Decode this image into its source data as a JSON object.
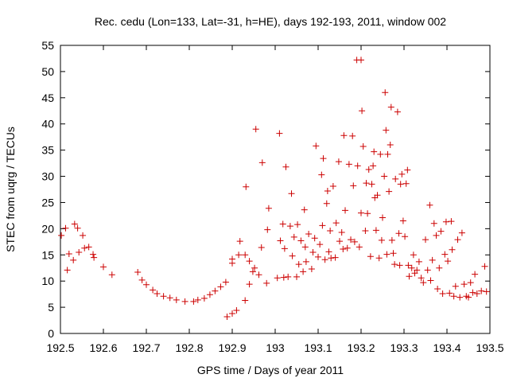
{
  "chart_data": {
    "type": "scatter",
    "title": "Rec. cedu (Lon=133, Lat=-31, h=HE), days 192-193, 2011, window 002",
    "xlabel": "GPS time / Days of year 2011",
    "ylabel": "STEC from uqrg / TECUs",
    "xlim": [
      192.5,
      193.5
    ],
    "ylim": [
      0,
      55
    ],
    "x_ticks": [
      "192.5",
      "192.6",
      "192.7",
      "192.8",
      "192.9",
      "193",
      "193.1",
      "193.2",
      "193.3",
      "193.4",
      "193.5"
    ],
    "y_ticks": [
      "0",
      "5",
      "10",
      "15",
      "20",
      "25",
      "30",
      "35",
      "40",
      "45",
      "50",
      "55"
    ],
    "grid": false,
    "marker": "+",
    "color": "#cc0000",
    "series": [
      {
        "points": [
          [
            192.502,
            18.7
          ],
          [
            192.512,
            20.1
          ],
          [
            192.516,
            12.1
          ],
          [
            192.52,
            15.2
          ],
          [
            192.53,
            14
          ],
          [
            192.533,
            20.9
          ],
          [
            192.54,
            20.1
          ],
          [
            192.543,
            15.5
          ],
          [
            192.552,
            18.7
          ],
          [
            192.556,
            16.3
          ],
          [
            192.566,
            16.5
          ],
          [
            192.576,
            15.1
          ],
          [
            192.578,
            14.5
          ],
          [
            192.6,
            12.7
          ],
          [
            192.62,
            11.2
          ],
          [
            192.68,
            11.7
          ],
          [
            192.69,
            10.2
          ],
          [
            192.7,
            9.3
          ],
          [
            192.715,
            8.3
          ],
          [
            192.725,
            7.6
          ],
          [
            192.74,
            7.1
          ],
          [
            192.755,
            6.8
          ],
          [
            192.77,
            6.4
          ],
          [
            192.79,
            6.1
          ],
          [
            192.81,
            6.1
          ],
          [
            192.82,
            6.4
          ],
          [
            192.835,
            6.7
          ],
          [
            192.848,
            7.4
          ],
          [
            192.86,
            8.1
          ],
          [
            192.873,
            8.9
          ],
          [
            192.885,
            9.8
          ],
          [
            192.888,
            3.2
          ],
          [
            192.9,
            3.8
          ],
          [
            192.9,
            13.4
          ],
          [
            192.9,
            14.2
          ],
          [
            192.91,
            4.4
          ],
          [
            192.915,
            15
          ],
          [
            192.918,
            17.6
          ],
          [
            192.93,
            6.3
          ],
          [
            192.93,
            15
          ],
          [
            192.932,
            28
          ],
          [
            192.94,
            9.4
          ],
          [
            192.94,
            13.8
          ],
          [
            192.948,
            11.8
          ],
          [
            192.952,
            12.5
          ],
          [
            192.955,
            39
          ],
          [
            192.962,
            11.2
          ],
          [
            192.968,
            16.4
          ],
          [
            192.97,
            32.6
          ],
          [
            192.98,
            9.6
          ],
          [
            192.982,
            19.8
          ],
          [
            192.985,
            23.9
          ],
          [
            193.005,
            10.6
          ],
          [
            193.01,
            38.2
          ],
          [
            193.012,
            17.7
          ],
          [
            193.018,
            20.9
          ],
          [
            193.02,
            10.7
          ],
          [
            193.022,
            16.2
          ],
          [
            193.025,
            31.8
          ],
          [
            193.03,
            10.8
          ],
          [
            193.035,
            20.5
          ],
          [
            193.038,
            26.7
          ],
          [
            193.04,
            14.8
          ],
          [
            193.044,
            18.4
          ],
          [
            193.05,
            10.8
          ],
          [
            193.052,
            20.8
          ],
          [
            193.055,
            13.2
          ],
          [
            193.06,
            17.7
          ],
          [
            193.065,
            11.8
          ],
          [
            193.068,
            23.6
          ],
          [
            193.07,
            16.5
          ],
          [
            193.072,
            13.7
          ],
          [
            193.078,
            19
          ],
          [
            193.085,
            12.3
          ],
          [
            193.088,
            15.5
          ],
          [
            193.092,
            18.2
          ],
          [
            193.095,
            35.8
          ],
          [
            193.1,
            14.6
          ],
          [
            193.104,
            17
          ],
          [
            193.108,
            30.3
          ],
          [
            193.11,
            20.6
          ],
          [
            193.112,
            33.4
          ],
          [
            193.116,
            14.1
          ],
          [
            193.12,
            24.8
          ],
          [
            193.122,
            27.2
          ],
          [
            193.125,
            15.6
          ],
          [
            193.128,
            19.6
          ],
          [
            193.13,
            14.4
          ],
          [
            193.135,
            28.1
          ],
          [
            193.14,
            14.5
          ],
          [
            193.142,
            21.1
          ],
          [
            193.148,
            32.8
          ],
          [
            193.15,
            17.6
          ],
          [
            193.155,
            19.3
          ],
          [
            193.158,
            16.1
          ],
          [
            193.16,
            37.8
          ],
          [
            193.163,
            23.5
          ],
          [
            193.168,
            16.3
          ],
          [
            193.172,
            32.3
          ],
          [
            193.176,
            17.9
          ],
          [
            193.18,
            37.7
          ],
          [
            193.182,
            28.2
          ],
          [
            193.185,
            17.5
          ],
          [
            193.19,
            52.2
          ],
          [
            193.192,
            32
          ],
          [
            193.196,
            16.5
          ],
          [
            193.2,
            23
          ],
          [
            193.2,
            52.2
          ],
          [
            193.202,
            42.5
          ],
          [
            193.205,
            35.7
          ],
          [
            193.21,
            19.6
          ],
          [
            193.212,
            28.7
          ],
          [
            193.215,
            22.9
          ],
          [
            193.218,
            31.3
          ],
          [
            193.222,
            14.7
          ],
          [
            193.225,
            28.5
          ],
          [
            193.228,
            32
          ],
          [
            193.23,
            34.7
          ],
          [
            193.232,
            25.9
          ],
          [
            193.235,
            19.7
          ],
          [
            193.238,
            26.4
          ],
          [
            193.242,
            14.4
          ],
          [
            193.245,
            34.2
          ],
          [
            193.248,
            17.8
          ],
          [
            193.25,
            22.1
          ],
          [
            193.254,
            30
          ],
          [
            193.256,
            46
          ],
          [
            193.258,
            38.8
          ],
          [
            193.26,
            15.1
          ],
          [
            193.262,
            34.2
          ],
          [
            193.265,
            27.1
          ],
          [
            193.268,
            36
          ],
          [
            193.27,
            43.2
          ],
          [
            193.272,
            17.8
          ],
          [
            193.275,
            15.3
          ],
          [
            193.278,
            13.2
          ],
          [
            193.28,
            29.5
          ],
          [
            193.285,
            42.3
          ],
          [
            193.288,
            19.1
          ],
          [
            193.29,
            13
          ],
          [
            193.292,
            28.5
          ],
          [
            193.295,
            30.4
          ],
          [
            193.298,
            21.5
          ],
          [
            193.302,
            18.5
          ],
          [
            193.305,
            28.6
          ],
          [
            193.308,
            31.2
          ],
          [
            193.31,
            13
          ],
          [
            193.312,
            10.9
          ],
          [
            193.318,
            12.5
          ],
          [
            193.322,
            15
          ],
          [
            193.325,
            11.5
          ],
          [
            193.33,
            12.1
          ],
          [
            193.335,
            13.7
          ],
          [
            193.34,
            10.6
          ],
          [
            193.345,
            9.7
          ],
          [
            193.35,
            17.9
          ],
          [
            193.355,
            12.1
          ],
          [
            193.36,
            24.5
          ],
          [
            193.362,
            10.1
          ],
          [
            193.366,
            14
          ],
          [
            193.37,
            21
          ],
          [
            193.375,
            18.7
          ],
          [
            193.378,
            8.5
          ],
          [
            193.382,
            12.5
          ],
          [
            193.386,
            19.5
          ],
          [
            193.39,
            7.6
          ],
          [
            193.395,
            15.1
          ],
          [
            193.398,
            21.3
          ],
          [
            193.402,
            13.8
          ],
          [
            193.406,
            7.7
          ],
          [
            193.41,
            21.4
          ],
          [
            193.412,
            16
          ],
          [
            193.416,
            7.1
          ],
          [
            193.42,
            9
          ],
          [
            193.425,
            17.9
          ],
          [
            193.43,
            6.9
          ],
          [
            193.435,
            19.2
          ],
          [
            193.44,
            9.4
          ],
          [
            193.445,
            7.1
          ],
          [
            193.45,
            6.9
          ],
          [
            193.455,
            9.7
          ],
          [
            193.46,
            7.8
          ],
          [
            193.465,
            11.3
          ],
          [
            193.47,
            7.6
          ],
          [
            193.48,
            8.1
          ],
          [
            193.488,
            12.8
          ],
          [
            193.492,
            8
          ]
        ]
      }
    ]
  }
}
